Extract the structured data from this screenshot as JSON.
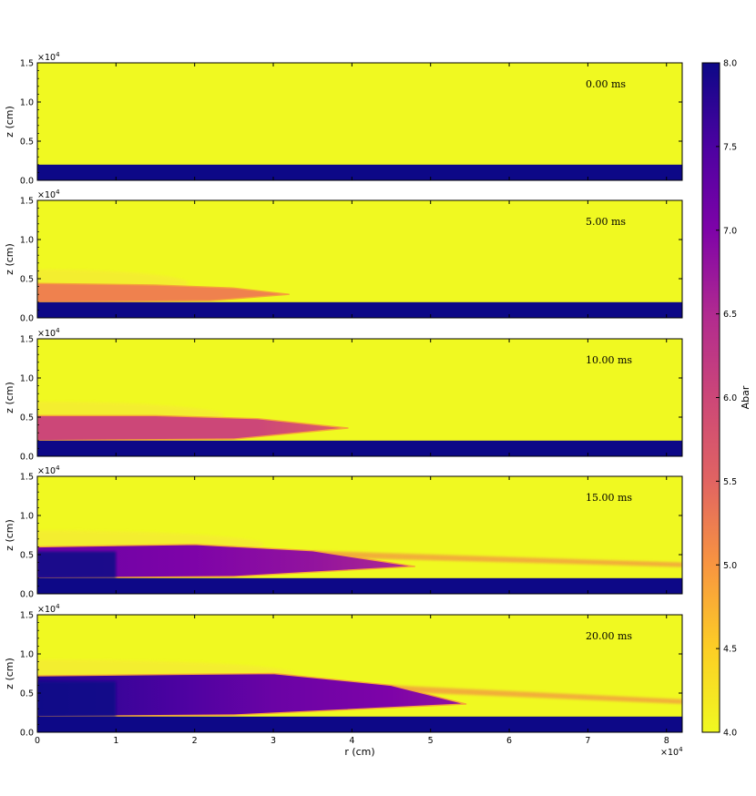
{
  "chart_data": {
    "type": "heatmap",
    "colormap": "plasma_r",
    "colors": {
      "low": "#f0f921",
      "mid": "#cc4778",
      "high": "#0d0887",
      "background": "#f0f921"
    },
    "xlabel": "r  (cm)",
    "x_multiplier": "×10",
    "x_multiplier_exp": "4",
    "xlim": [
      0,
      8.2
    ],
    "xticks": [
      "0",
      "1",
      "2",
      "3",
      "4",
      "5",
      "6",
      "7",
      "8"
    ],
    "ylabel": "z  (cm)",
    "y_multiplier": "×10",
    "y_multiplier_exp": "4",
    "ylim": [
      0,
      1.5
    ],
    "yticks": [
      "0.0",
      "0.5",
      "1.0",
      "1.5"
    ],
    "colorbar": {
      "label": "Abar",
      "range": [
        4.0,
        8.0
      ],
      "ticks": [
        "4.0",
        "4.5",
        "5.0",
        "5.5",
        "6.0",
        "6.5",
        "7.0",
        "7.5",
        "8.0"
      ]
    },
    "panels": [
      {
        "time": "0.00 ms",
        "base_layer_top": 0.2,
        "plume": [],
        "fringe": []
      },
      {
        "time": "5.00 ms",
        "base_layer_top": 0.2,
        "plume": [
          {
            "r": 0,
            "z": 0.2,
            "abar": 5.2
          },
          {
            "r": 0,
            "z": 0.44,
            "abar": 5.2
          },
          {
            "r": 1.5,
            "z": 0.42,
            "abar": 5.2
          },
          {
            "r": 2.5,
            "z": 0.38,
            "abar": 5.2
          },
          {
            "r": 3.2,
            "z": 0.3,
            "abar": 5.2
          },
          {
            "r": 2.2,
            "z": 0.22,
            "abar": 5.2
          }
        ],
        "fringe": []
      },
      {
        "time": "10.00 ms",
        "base_layer_top": 0.2,
        "plume": [
          {
            "r": 0,
            "z": 0.2,
            "abar": 6.0
          },
          {
            "r": 0,
            "z": 0.52,
            "abar": 6.0
          },
          {
            "r": 1.5,
            "z": 0.52,
            "abar": 6.0
          },
          {
            "r": 2.8,
            "z": 0.48,
            "abar": 6.0
          },
          {
            "r": 3.95,
            "z": 0.36,
            "abar": 5.6
          },
          {
            "r": 2.5,
            "z": 0.22,
            "abar": 5.6
          }
        ],
        "fringe": []
      },
      {
        "time": "15.00 ms",
        "base_layer_top": 0.2,
        "plume": [
          {
            "r": 0,
            "z": 0.2,
            "abar": 7.2
          },
          {
            "r": 0,
            "z": 0.6,
            "abar": 7.2
          },
          {
            "r": 2.0,
            "z": 0.63,
            "abar": 7.0
          },
          {
            "r": 3.5,
            "z": 0.55,
            "abar": 6.8
          },
          {
            "r": 4.8,
            "z": 0.35,
            "abar": 6.5
          },
          {
            "r": 2.5,
            "z": 0.22,
            "abar": 6.5
          }
        ],
        "fringe": [
          {
            "r": 3.5,
            "z": 0.55
          },
          {
            "r": 8.2,
            "z": 0.4
          }
        ]
      },
      {
        "time": "20.00 ms",
        "base_layer_top": 0.2,
        "plume": [
          {
            "r": 0,
            "z": 0.2,
            "abar": 7.8
          },
          {
            "r": 0,
            "z": 0.72,
            "abar": 7.8
          },
          {
            "r": 1.8,
            "z": 0.74,
            "abar": 7.5
          },
          {
            "r": 3.0,
            "z": 0.75,
            "abar": 7.2
          },
          {
            "r": 4.5,
            "z": 0.6,
            "abar": 7.0
          },
          {
            "r": 5.45,
            "z": 0.36,
            "abar": 6.8
          },
          {
            "r": 2.5,
            "z": 0.22,
            "abar": 6.8
          }
        ],
        "fringe": [
          {
            "r": 4.5,
            "z": 0.6
          },
          {
            "r": 8.2,
            "z": 0.42
          }
        ]
      }
    ]
  }
}
